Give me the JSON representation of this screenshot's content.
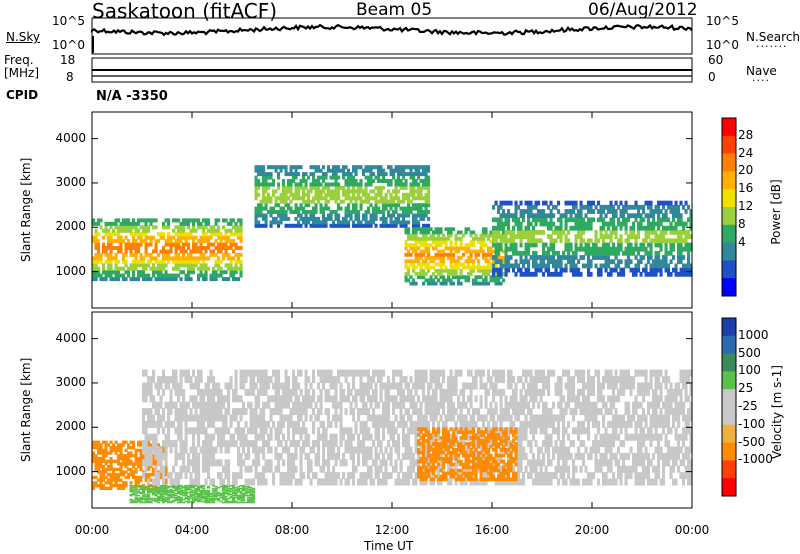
{
  "header": {
    "station": "Saskatoon (fitACF)",
    "beam": "Beam 05",
    "date": "06/Aug/2012"
  },
  "noise_panel": {
    "left_label": "N.Sky",
    "left_ticks": [
      "10^5",
      "10^0"
    ],
    "right_ticks": [
      "10^5",
      "10^0"
    ],
    "right_label": "N.Search",
    "right_dots": "·······"
  },
  "freq_panel": {
    "left_label_1": "Freq.",
    "left_label_2": "[MHz]",
    "left_ticks": [
      "18",
      "8"
    ],
    "right_ticks": [
      "60",
      "0"
    ],
    "right_label": "Nave",
    "right_dots": "····"
  },
  "cpid": {
    "label": "CPID",
    "value": "N/A -3350"
  },
  "x_axis": {
    "label": "Time UT",
    "ticks": [
      "00:00",
      "04:00",
      "08:00",
      "12:00",
      "16:00",
      "20:00",
      "00:00"
    ]
  },
  "power_panel": {
    "ylabel": "Slant Range [km]",
    "yticks": [
      "4000",
      "3000",
      "2000",
      "1000"
    ],
    "colorbar_label": "Power [dB]",
    "colorbar_ticks": [
      "28",
      "24",
      "20",
      "16",
      "12",
      "8",
      "4"
    ],
    "colors": [
      "#ff0000",
      "#ff4000",
      "#ff8000",
      "#ffb000",
      "#f0e000",
      "#9ad03c",
      "#2eaa60",
      "#30889a",
      "#2050c8",
      "#0000ff"
    ]
  },
  "velocity_panel": {
    "ylabel": "Slant Range [km]",
    "yticks": [
      "4000",
      "3000",
      "2000",
      "1000"
    ],
    "colorbar_label": "Velocity [m s-1]",
    "colorbar_ticks": [
      "1000",
      "500",
      "100",
      "25",
      "-25",
      "-100",
      "-500",
      "-1000"
    ],
    "colors": [
      "#1f3fa8",
      "#2a6ab0",
      "#3a8a5a",
      "#5ac24a",
      "#c8c8c8",
      "#c8c8c8",
      "#f0b040",
      "#ff8c00",
      "#ff4000",
      "#ff0000"
    ]
  },
  "chart_data": {
    "type": "heatmap",
    "title": "Saskatoon (fitACF) Beam 05 06/Aug/2012",
    "xlabel": "Time UT",
    "ylabel": "Slant Range [km]",
    "xlim": [
      0,
      24
    ],
    "ylim": [
      180,
      4600
    ],
    "power_scale_dB": [
      0,
      32
    ],
    "velocity_scale_ms": [
      -1000,
      1000
    ],
    "power_regions": [
      {
        "t": [
          0,
          6
        ],
        "range": [
          800,
          2200
        ],
        "peak_dB": 26
      },
      {
        "t": [
          6.5,
          13.5
        ],
        "range": [
          2000,
          3400
        ],
        "peak_dB": 16
      },
      {
        "t": [
          12.5,
          16.5
        ],
        "range": [
          700,
          2000
        ],
        "peak_dB": 24
      },
      {
        "t": [
          16,
          24
        ],
        "range": [
          900,
          2600
        ],
        "peak_dB": 14
      }
    ],
    "velocity_regions": [
      {
        "t": [
          0,
          3
        ],
        "range": [
          600,
          1700
        ],
        "velocity_ms": -200
      },
      {
        "t": [
          2,
          24
        ],
        "range": [
          700,
          3300
        ],
        "velocity_ms": 0
      },
      {
        "t": [
          13,
          17
        ],
        "range": [
          800,
          2000
        ],
        "velocity_ms": -150
      },
      {
        "t": [
          1.5,
          6.5
        ],
        "range": [
          300,
          700
        ],
        "velocity_ms": 120
      }
    ]
  }
}
